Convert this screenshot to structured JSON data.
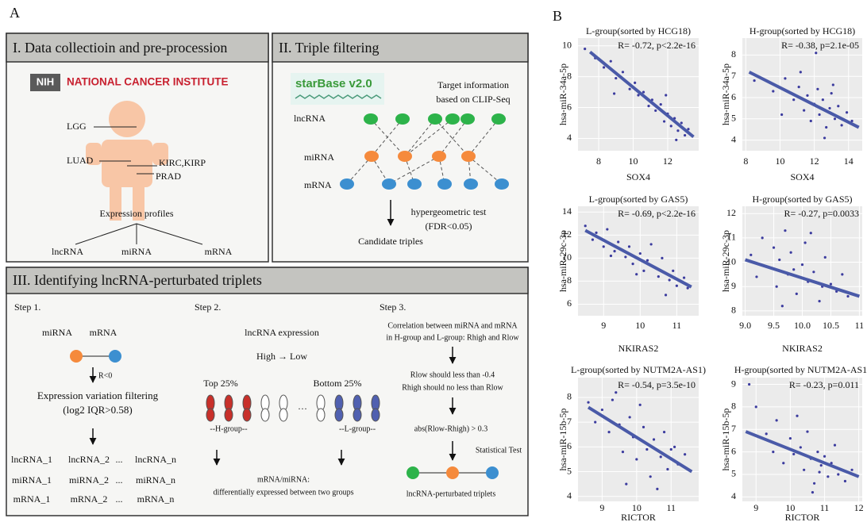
{
  "label_a": "A",
  "label_b": "B",
  "panel1": {
    "title": "I. Data collectioin and pre-procession",
    "nih": "NIH",
    "nci": "NATIONAL CANCER INSTITUTE",
    "organs": [
      "LGG",
      "LUAD",
      "KIRC,KIRP",
      "PRAD"
    ],
    "profiles": "Expression profiles",
    "types": [
      "lncRNA",
      "miRNA",
      "mRNA"
    ]
  },
  "panel2": {
    "title": "II. Triple filtering",
    "starbase": "starBase v2.0",
    "target": [
      "Target information",
      "based on CLIP-Seq"
    ],
    "rows": [
      "lncRNA",
      "miRNA",
      "mRNA"
    ],
    "test": [
      "hypergeometric test",
      "(FDR<0.05)"
    ],
    "result": "Candidate triples"
  },
  "panel3": {
    "title": "III. Identifying lncRNA-perturbated triplets",
    "step1": {
      "title": "Step 1.",
      "pair": [
        "miRNA",
        "mRNA"
      ],
      "cond": "R<0",
      "filter": [
        "Expression variation filtering",
        "(log2 IQR>0.58)"
      ],
      "rows": [
        [
          "lncRNA_1",
          "lncRNA_2",
          "...",
          "lncRNA_n"
        ],
        [
          "miRNA_1",
          "miRNA_2",
          "...",
          "miRNA_n"
        ],
        [
          "mRNA_1",
          "mRNA_2",
          "...",
          "mRNA_n"
        ]
      ]
    },
    "step2": {
      "title": "Step 2.",
      "expr": "lncRNA expression",
      "order": "High → Low",
      "top": "Top 25%",
      "bottom": "Bottom 25%",
      "dots": "···",
      "hgroup": "--H-group--",
      "lgroup": "--L-group--",
      "result": [
        "mRNA/miRNA:",
        "differentially expressed between two groups"
      ]
    },
    "step3": {
      "title": "Step 3.",
      "corr": [
        "Correlation between miRNA and mRNA",
        "in H-group and L-group: Rhigh and Rlow"
      ],
      "rules": [
        "Rlow should less than -0.4",
        "Rhigh should no less than Rlow"
      ],
      "abs": "abs(Rlow-Rhigh) > 0.3",
      "test": "Statistical Test",
      "result": "lncRNA-perturbated triplets"
    }
  },
  "chart_data": [
    {
      "type": "scatter",
      "title": "L-group(sorted by HCG18)",
      "stat": "R= -0.72, p<2.2e-16",
      "xlabel": "SOX4",
      "ylabel": "hsa-miR-34a-5p",
      "xlim": [
        6.8,
        13.8
      ],
      "ylim": [
        3.2,
        10.5
      ],
      "xticks": [
        8,
        10,
        12
      ],
      "yticks": [
        4,
        6,
        8,
        10
      ],
      "color": "#3b3b9e",
      "fit_color": "#4a5aa8",
      "x": [
        7.2,
        7.8,
        8.3,
        8.7,
        9.0,
        9.4,
        9.8,
        10.1,
        10.3,
        10.6,
        10.9,
        11.1,
        11.3,
        11.6,
        11.8,
        12.0,
        12.2,
        12.4,
        12.6,
        12.8,
        13.0,
        13.2,
        8.9,
        11.9,
        12.5
      ],
      "y": [
        9.8,
        9.2,
        8.6,
        9.0,
        7.9,
        8.3,
        7.2,
        7.6,
        6.8,
        7.0,
        6.1,
        6.5,
        5.8,
        6.2,
        5.1,
        5.6,
        4.8,
        5.3,
        4.5,
        5.0,
        4.2,
        4.6,
        6.9,
        6.8,
        3.9
      ],
      "fit_x": [
        7.5,
        13.5
      ],
      "fit_y": [
        9.6,
        4.1
      ]
    },
    {
      "type": "scatter",
      "title": "H-group(sorted by HCG18)",
      "stat": "R= -0.38, p=2.1e-05",
      "xlabel": "SOX4",
      "ylabel": "hsa-miR-34a-5p",
      "xlim": [
        7.8,
        14.8
      ],
      "ylim": [
        3.5,
        8.8
      ],
      "xticks": [
        8,
        10,
        12,
        14
      ],
      "yticks": [
        4,
        5,
        6,
        7,
        8
      ],
      "color": "#3b3b9e",
      "fit_color": "#4a5aa8",
      "x": [
        8.5,
        9.6,
        10.3,
        10.8,
        11.1,
        11.4,
        11.6,
        11.8,
        12.0,
        12.2,
        12.3,
        12.5,
        12.7,
        12.9,
        13.0,
        13.2,
        13.4,
        13.6,
        13.9,
        14.2,
        11.2,
        12.6,
        10.1,
        13.1,
        12.1
      ],
      "y": [
        6.8,
        6.3,
        6.9,
        5.9,
        6.5,
        5.4,
        6.1,
        4.9,
        5.7,
        6.4,
        5.2,
        5.9,
        4.6,
        5.5,
        6.2,
        5.0,
        5.6,
        4.7,
        5.3,
        4.9,
        7.2,
        4.1,
        5.2,
        6.6,
        8.1
      ],
      "fit_x": [
        8.2,
        14.6
      ],
      "fit_y": [
        7.2,
        4.6
      ]
    },
    {
      "type": "scatter",
      "title": "L-group(sorted by GAS5)",
      "stat": "R= -0.69, p<2.2e-16",
      "xlabel": "NKIRAS2",
      "ylabel": "hsa-miR-29c-3p",
      "xlim": [
        8.3,
        11.6
      ],
      "ylim": [
        5,
        14.5
      ],
      "xticks": [
        9,
        10,
        11
      ],
      "yticks": [
        6,
        8,
        10,
        12,
        14
      ],
      "color": "#3b3b9e",
      "fit_color": "#4a5aa8",
      "x": [
        8.5,
        8.7,
        8.8,
        9.0,
        9.1,
        9.3,
        9.4,
        9.6,
        9.7,
        9.8,
        10.0,
        10.1,
        10.2,
        10.4,
        10.5,
        10.6,
        10.8,
        10.9,
        11.0,
        11.2,
        9.2,
        10.3,
        9.9,
        10.7,
        11.3
      ],
      "y": [
        12.8,
        11.6,
        12.2,
        11.0,
        12.5,
        10.6,
        11.4,
        10.1,
        11.0,
        9.5,
        10.4,
        8.9,
        9.8,
        9.2,
        8.4,
        10.0,
        8.1,
        8.9,
        7.6,
        8.3,
        10.2,
        11.2,
        8.6,
        6.8,
        7.4
      ],
      "fit_x": [
        8.5,
        11.4
      ],
      "fit_y": [
        12.4,
        7.5
      ]
    },
    {
      "type": "scatter",
      "title": "H-group(sorted by GAS5)",
      "stat": "R= -0.27, p=0.0033",
      "xlabel": "NKIRAS2",
      "ylabel": "hsa-miR-29c-3p",
      "xlim": [
        8.95,
        11.05
      ],
      "ylim": [
        7.8,
        12.3
      ],
      "xticks": [
        {
          "value": 9,
          "label": "9.0"
        },
        9.5,
        {
          "value": 10,
          "label": "10.0"
        },
        10.5,
        11
      ],
      "yticks": [
        8,
        9,
        10,
        11,
        12
      ],
      "color": "#3b3b9e",
      "fit_color": "#4a5aa8",
      "x": [
        9.1,
        9.2,
        9.3,
        9.4,
        9.5,
        9.55,
        9.6,
        9.7,
        9.75,
        9.8,
        9.9,
        10.0,
        10.05,
        10.1,
        10.2,
        10.3,
        10.4,
        10.5,
        10.6,
        10.7,
        10.8,
        9.65,
        10.15,
        9.85,
        10.35
      ],
      "y": [
        10.3,
        9.4,
        11.0,
        9.8,
        10.6,
        9.0,
        10.1,
        11.3,
        9.5,
        10.4,
        8.7,
        9.9,
        10.8,
        9.2,
        9.6,
        8.4,
        10.2,
        9.1,
        8.8,
        9.5,
        8.6,
        8.2,
        11.2,
        9.7,
        9.0
      ],
      "fit_x": [
        9.0,
        11.0
      ],
      "fit_y": [
        10.1,
        8.6
      ]
    },
    {
      "type": "scatter",
      "title": "L-group(sorted by NUTM2A-AS1)",
      "stat": "R= -0.54, p=3.5e-10",
      "xlabel": "RICTOR",
      "ylabel": "hsa-miR-15b-5p",
      "xlim": [
        8.3,
        11.8
      ],
      "ylim": [
        3.8,
        8.8
      ],
      "xticks": [
        9,
        10,
        11
      ],
      "yticks": [
        4,
        5,
        6,
        7,
        8
      ],
      "color": "#3b3b9e",
      "fit_color": "#4a5aa8",
      "x": [
        8.6,
        8.8,
        9.0,
        9.2,
        9.3,
        9.5,
        9.6,
        9.8,
        9.9,
        10.0,
        10.2,
        10.3,
        10.4,
        10.5,
        10.7,
        10.8,
        10.9,
        11.0,
        11.2,
        11.4,
        9.7,
        10.1,
        10.6,
        9.4,
        11.1
      ],
      "y": [
        7.8,
        7.0,
        7.5,
        6.6,
        7.9,
        6.9,
        5.8,
        7.2,
        6.4,
        5.5,
        6.8,
        5.9,
        4.8,
        6.3,
        5.6,
        6.6,
        5.1,
        5.9,
        5.3,
        5.7,
        4.5,
        7.7,
        4.3,
        8.2,
        6.0
      ],
      "fit_x": [
        8.6,
        11.6
      ],
      "fit_y": [
        7.6,
        5.0
      ]
    },
    {
      "type": "scatter",
      "title": "H-group(sorted by NUTM2A-AS1)",
      "stat": "R= -0.23, p=0.011",
      "xlabel": "RICTOR",
      "ylabel": "hsa-miR-15b-5p",
      "xlim": [
        8.6,
        12.1
      ],
      "ylim": [
        3.8,
        9.3
      ],
      "xticks": [
        9,
        10,
        11,
        12
      ],
      "yticks": [
        4,
        5,
        6,
        7,
        8,
        9
      ],
      "color": "#3b3b9e",
      "fit_color": "#4a5aa8",
      "x": [
        8.8,
        9.0,
        9.3,
        9.6,
        9.8,
        10.0,
        10.1,
        10.3,
        10.4,
        10.5,
        10.6,
        10.7,
        10.8,
        10.9,
        11.0,
        11.1,
        11.2,
        11.4,
        11.6,
        11.8,
        10.2,
        10.65,
        11.3,
        9.5,
        10.85
      ],
      "y": [
        9.0,
        8.0,
        6.8,
        7.4,
        5.5,
        6.6,
        5.9,
        6.2,
        5.2,
        6.9,
        5.7,
        4.6,
        6.0,
        5.4,
        5.8,
        4.9,
        5.5,
        5.0,
        4.7,
        5.2,
        7.6,
        4.2,
        6.3,
        6.0,
        5.1
      ],
      "fit_x": [
        8.7,
        12.0
      ],
      "fit_y": [
        6.9,
        4.9
      ]
    }
  ]
}
